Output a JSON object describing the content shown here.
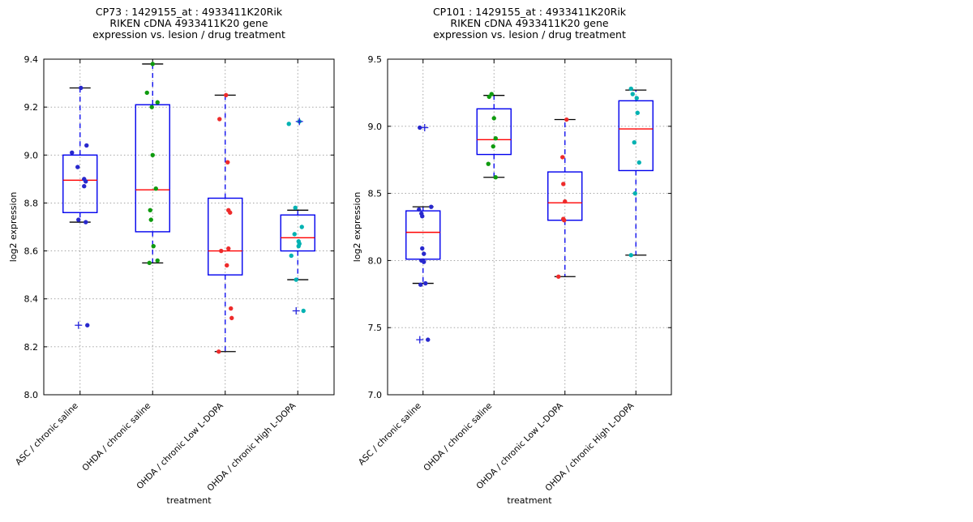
{
  "figure": {
    "background": "#ffffff",
    "colors": {
      "box": "#0000ee",
      "median": "#ff0000",
      "whisker": "#0000ee",
      "cap": "#000000",
      "flier": "#2323dd",
      "grid": "#999999",
      "spine": "#000000"
    }
  },
  "chart_data": [
    {
      "type": "boxplot-scatter",
      "id": "CP73",
      "title_lines": [
        "CP73 : 1429155_at : 4933411K20Rik",
        "RIKEN cDNA 4933411K20 gene",
        "expression vs. lesion / drug treatment"
      ],
      "ylabel": "log2 expression",
      "xlabel": "treatment",
      "ylim": [
        8.0,
        9.4
      ],
      "yticks": [
        8.0,
        8.2,
        8.4,
        8.6,
        8.8,
        9.0,
        9.2,
        9.4
      ],
      "grid": true,
      "categories": [
        "ASC / chronic saline",
        "OHDA / chronic saline",
        "OHDA / chronic Low L-DOPA",
        "OHDA / chronic High L-DOPA"
      ],
      "groups": [
        {
          "label": "ASC / chronic saline",
          "point_color": "#2828cd",
          "box": {
            "whisker_high": 9.28,
            "q3": 9.0,
            "median": 8.895,
            "q1": 8.76,
            "whisker_low": 8.72
          },
          "fliers": [
            [
              8.29,
              -2
            ]
          ],
          "points": [
            [
              9.28,
              1
            ],
            [
              9.04,
              8
            ],
            [
              9.01,
              -10
            ],
            [
              8.95,
              -3
            ],
            [
              8.9,
              5
            ],
            [
              8.89,
              7
            ],
            [
              8.87,
              5
            ],
            [
              8.73,
              -2
            ],
            [
              8.72,
              7
            ],
            [
              8.29,
              9
            ]
          ]
        },
        {
          "label": "OHDA / chronic saline",
          "point_color": "#0f9b0f",
          "box": {
            "whisker_high": 9.38,
            "q3": 9.21,
            "median": 8.855,
            "q1": 8.68,
            "whisker_low": 8.55
          },
          "fliers": [],
          "points": [
            [
              9.38,
              0
            ],
            [
              9.26,
              -7
            ],
            [
              9.22,
              6
            ],
            [
              9.2,
              -1
            ],
            [
              9.0,
              0
            ],
            [
              8.86,
              4
            ],
            [
              8.77,
              -3
            ],
            [
              8.73,
              -2
            ],
            [
              8.62,
              1
            ],
            [
              8.56,
              6
            ],
            [
              8.55,
              -4
            ]
          ]
        },
        {
          "label": "OHDA / chronic Low L-DOPA",
          "point_color": "#ee2b2b",
          "box": {
            "whisker_high": 9.25,
            "q3": 8.82,
            "median": 8.6,
            "q1": 8.5,
            "whisker_low": 8.18
          },
          "fliers": [],
          "points": [
            [
              9.25,
              1
            ],
            [
              9.15,
              -7
            ],
            [
              8.97,
              3
            ],
            [
              8.77,
              4
            ],
            [
              8.76,
              6
            ],
            [
              8.61,
              4
            ],
            [
              8.6,
              -5
            ],
            [
              8.54,
              2
            ],
            [
              8.36,
              7
            ],
            [
              8.32,
              8
            ],
            [
              8.18,
              -8
            ]
          ]
        },
        {
          "label": "OHDA / chronic High L-DOPA",
          "point_color": "#00b2b2",
          "box": {
            "whisker_high": 8.77,
            "q3": 8.75,
            "median": 8.655,
            "q1": 8.6,
            "whisker_low": 8.48
          },
          "fliers": [
            [
              9.14,
              2
            ],
            [
              8.35,
              -2
            ]
          ],
          "points": [
            [
              9.13,
              -11
            ],
            [
              9.14,
              2
            ],
            [
              8.78,
              -3
            ],
            [
              8.7,
              5
            ],
            [
              8.67,
              -4
            ],
            [
              8.64,
              1
            ],
            [
              8.63,
              2
            ],
            [
              8.62,
              1
            ],
            [
              8.58,
              -8
            ],
            [
              8.48,
              -2
            ],
            [
              8.35,
              7
            ]
          ]
        }
      ]
    },
    {
      "type": "boxplot-scatter",
      "id": "CP101",
      "title_lines": [
        "CP101 : 1429155_at : 4933411K20Rik",
        "RIKEN cDNA 4933411K20 gene",
        "expression vs. lesion / drug treatment"
      ],
      "ylabel": "log2 expression",
      "xlabel": "treatment",
      "ylim": [
        7.0,
        9.5
      ],
      "yticks": [
        7.0,
        7.5,
        8.0,
        8.5,
        9.0,
        9.5
      ],
      "grid": true,
      "categories": [
        "ASC / chronic saline",
        "OHDA / chronic saline",
        "OHDA / chronic Low L-DOPA",
        "OHDA / chronic High L-DOPA"
      ],
      "groups": [
        {
          "label": "ASC / chronic saline",
          "point_color": "#2828cd",
          "box": {
            "whisker_high": 8.4,
            "q3": 8.37,
            "median": 8.21,
            "q1": 8.01,
            "whisker_low": 7.83
          },
          "fliers": [
            [
              8.99,
              2
            ],
            [
              7.41,
              -4
            ]
          ],
          "points": [
            [
              8.99,
              -4
            ],
            [
              8.4,
              10
            ],
            [
              8.38,
              -5
            ],
            [
              8.35,
              -2
            ],
            [
              8.33,
              -1
            ],
            [
              8.09,
              -1
            ],
            [
              8.05,
              1
            ],
            [
              8.0,
              -2
            ],
            [
              7.99,
              1
            ],
            [
              7.83,
              3
            ],
            [
              7.82,
              -3
            ],
            [
              7.41,
              6
            ]
          ]
        },
        {
          "label": "OHDA / chronic saline",
          "point_color": "#0f9b0f",
          "box": {
            "whisker_high": 9.23,
            "q3": 9.13,
            "median": 8.9,
            "q1": 8.79,
            "whisker_low": 8.62
          },
          "fliers": [],
          "points": [
            [
              9.24,
              -3
            ],
            [
              9.22,
              -6
            ],
            [
              9.06,
              0
            ],
            [
              8.91,
              2
            ],
            [
              8.85,
              -1
            ],
            [
              8.72,
              -7
            ],
            [
              8.62,
              2
            ]
          ]
        },
        {
          "label": "OHDA / chronic Low L-DOPA",
          "point_color": "#ee2b2b",
          "box": {
            "whisker_high": 9.05,
            "q3": 8.66,
            "median": 8.43,
            "q1": 8.3,
            "whisker_low": 7.88
          },
          "fliers": [],
          "points": [
            [
              9.05,
              2
            ],
            [
              8.77,
              -3
            ],
            [
              8.57,
              -2
            ],
            [
              8.44,
              0
            ],
            [
              8.31,
              -2
            ],
            [
              8.3,
              -1
            ],
            [
              7.88,
              -8
            ]
          ]
        },
        {
          "label": "OHDA / chronic High L-DOPA",
          "point_color": "#00b2b2",
          "box": {
            "whisker_high": 9.27,
            "q3": 9.19,
            "median": 8.98,
            "q1": 8.67,
            "whisker_low": 8.04
          },
          "fliers": [],
          "points": [
            [
              9.28,
              -6
            ],
            [
              9.24,
              -4
            ],
            [
              9.21,
              1
            ],
            [
              9.1,
              2
            ],
            [
              8.88,
              -2
            ],
            [
              8.73,
              4
            ],
            [
              8.5,
              -1
            ],
            [
              8.04,
              -6
            ]
          ]
        }
      ]
    }
  ]
}
